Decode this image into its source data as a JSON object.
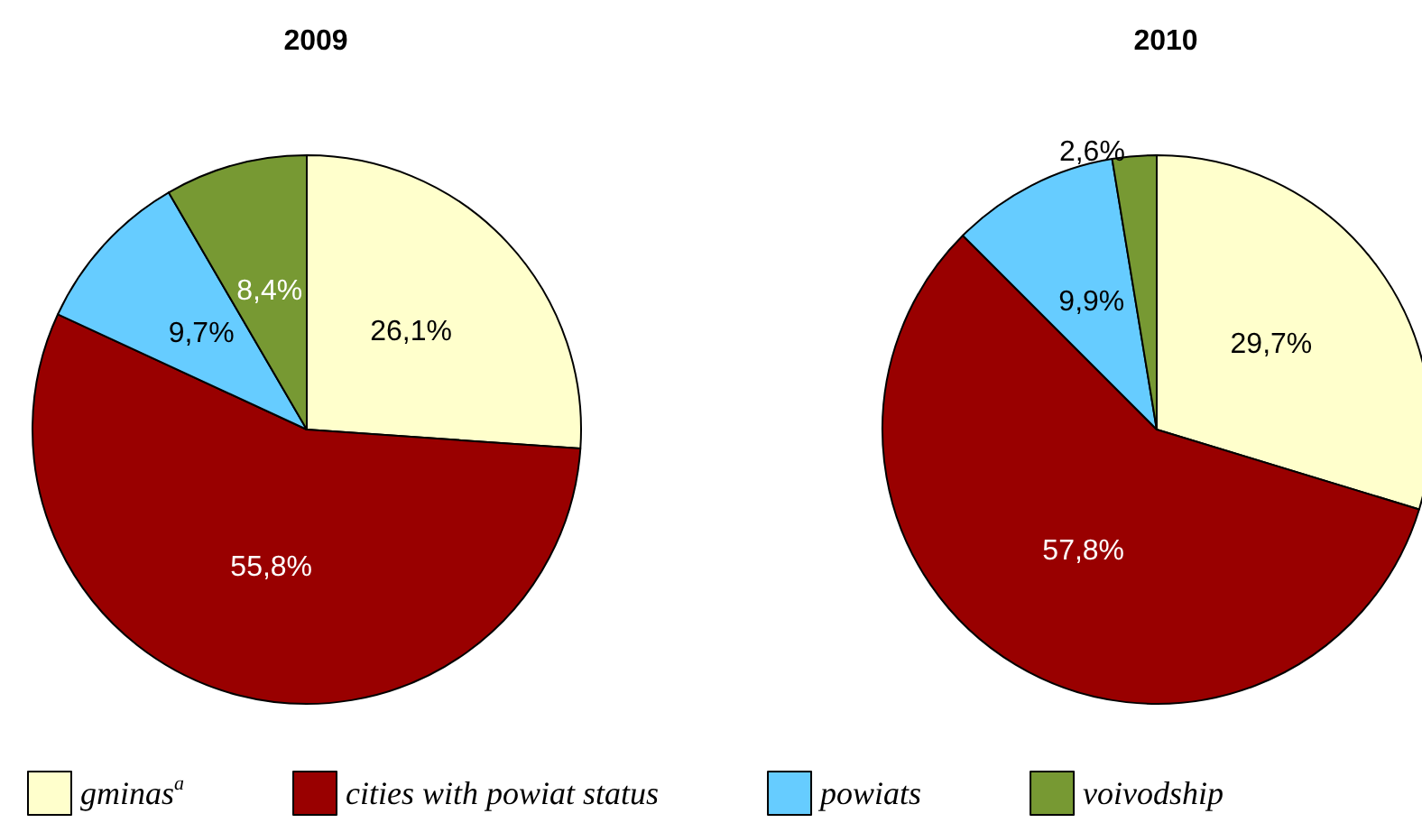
{
  "chart_data": {
    "type": "pie",
    "categories": [
      "gminas$^{a}$",
      "cities with powiat status",
      "powiats",
      "voivodship"
    ],
    "colors": [
      "#ffffcc",
      "#990000",
      "#66ccff",
      "#779933"
    ],
    "legend": "bottom",
    "series": [
      {
        "name": "2009",
        "values": [
          26.1,
          55.8,
          9.7,
          8.4
        ],
        "value_labels": [
          "26,1%",
          "55,8%",
          "9,7%",
          "8,4%"
        ]
      },
      {
        "name": "2010",
        "values": [
          29.7,
          57.8,
          9.9,
          2.6
        ],
        "value_labels": [
          "29,7%",
          "57,8%",
          "9,9%",
          "2,6%"
        ]
      }
    ]
  }
}
